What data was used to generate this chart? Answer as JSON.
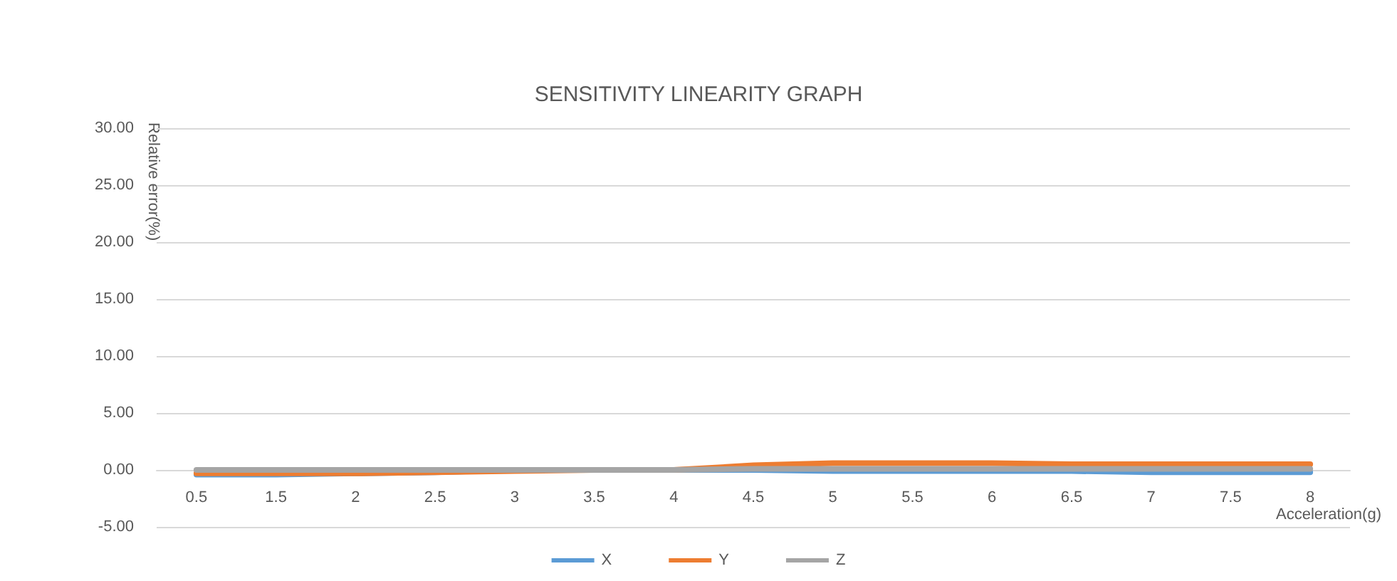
{
  "chart_data": {
    "type": "line",
    "title": "SENSITIVITY LINEARITY GRAPH",
    "xlabel": "Acceleration(g)",
    "ylabel": "Relative error(%)",
    "categories": [
      "0.5",
      "1.5",
      "2",
      "2.5",
      "3",
      "3.5",
      "4",
      "4.5",
      "5",
      "5.5",
      "6",
      "6.5",
      "7",
      "7.5",
      "8"
    ],
    "series": [
      {
        "name": "X",
        "color": "#5b9bd5",
        "values": [
          -0.4,
          -0.4,
          -0.3,
          -0.2,
          0,
          0,
          0,
          0,
          -0.1,
          -0.1,
          -0.1,
          -0.1,
          -0.2,
          -0.2,
          -0.2
        ]
      },
      {
        "name": "Y",
        "color": "#ed7d31",
        "values": [
          -0.3,
          -0.3,
          -0.3,
          -0.2,
          -0.1,
          0,
          0,
          0.4,
          0.6,
          0.6,
          0.6,
          0.5,
          0.5,
          0.5,
          0.5
        ]
      },
      {
        "name": "Z",
        "color": "#a5a5a5",
        "values": [
          0,
          0,
          0,
          0,
          0,
          0,
          0,
          0.1,
          0.1,
          0.1,
          0.1,
          0.1,
          0.1,
          0.1,
          0.1
        ]
      }
    ],
    "ylim": [
      -5,
      30
    ],
    "yticks": [
      {
        "value": -5,
        "label": "-5.00"
      },
      {
        "value": 0,
        "label": "0.00"
      },
      {
        "value": 5,
        "label": "5.00"
      },
      {
        "value": 10,
        "label": "10.00"
      },
      {
        "value": 15,
        "label": "15.00"
      },
      {
        "value": 20,
        "label": "20.00"
      },
      {
        "value": 25,
        "label": "25.00"
      },
      {
        "value": 30,
        "label": "30.00"
      }
    ],
    "grid": "y",
    "legend": "bottom",
    "marker": "none",
    "line_style": "solid"
  }
}
